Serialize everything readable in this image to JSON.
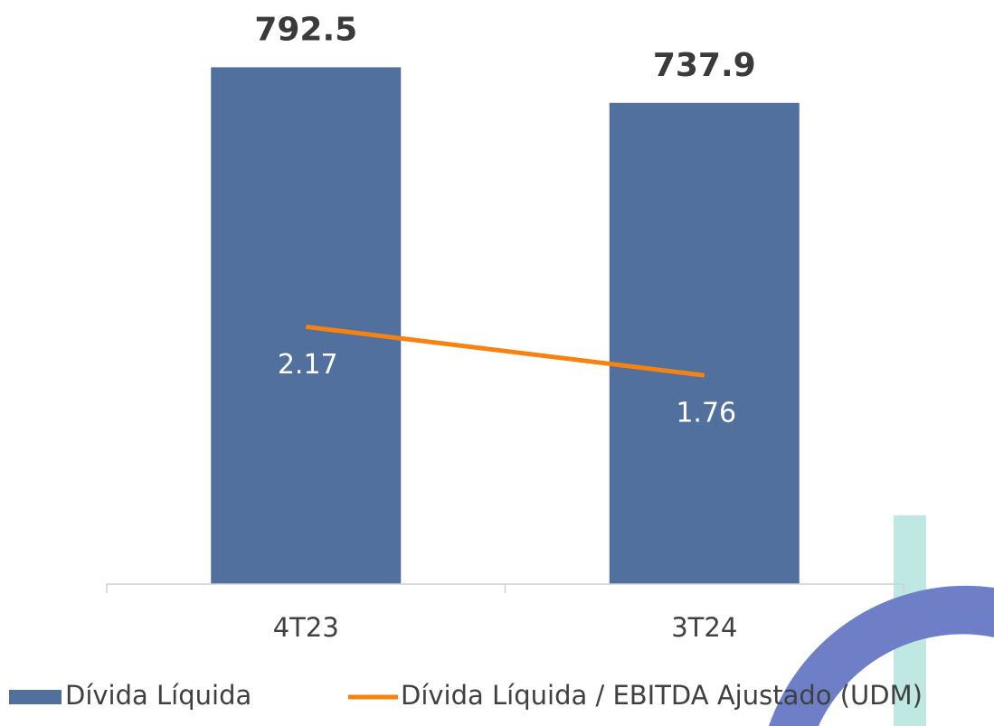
{
  "chart_data": {
    "type": "bar_line",
    "categories": [
      "4T23",
      "3T24"
    ],
    "series": [
      {
        "name": "Dívida Líquida",
        "type": "bar",
        "color": "#52709e",
        "values": [
          792.5,
          737.9
        ]
      },
      {
        "name": "Dívida Líquida / EBITDA Ajustado (UDM)",
        "type": "line",
        "axis": "y2",
        "color": "#f7820f",
        "values": [
          2.17,
          1.76
        ]
      }
    ],
    "ylim": [
      0,
      800
    ],
    "y2lim": [
      0,
      4.4
    ],
    "grid": false
  }
}
